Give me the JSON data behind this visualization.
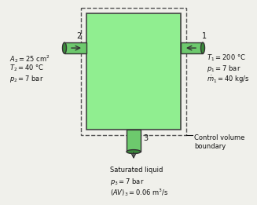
{
  "bg_color": "#f0f0eb",
  "box_color": "#90EE90",
  "box_edge": "#444444",
  "pipe_color": "#6DC96D",
  "pipe_edge": "#333333",
  "dashed_color": "#555555",
  "text_color": "#111111",
  "inlet1_label": "1",
  "inlet2_label": "2",
  "outlet3_label": "3",
  "inlet1_text_line1": "$T_1 = 200$ °C",
  "inlet1_text_line2": "$p_1 = 7$ bar",
  "inlet1_text_line3": "$\\dot{m}_1 = 40$ kg/s",
  "inlet2_text_line1": "$A_2 = 25$ cm$^2$",
  "inlet2_text_line2": "$T_2 = 40$ °C",
  "inlet2_text_line3": "$p_2 = 7$ bar",
  "outlet3_text_line1": "Saturated liquid",
  "outlet3_text_line2": "$p_3 = 7$ bar",
  "outlet3_text_line3": "$(AV)_3 = 0.06$ m$^3$/s",
  "cv_text_line1": "Control volume",
  "cv_text_line2": "boundary"
}
